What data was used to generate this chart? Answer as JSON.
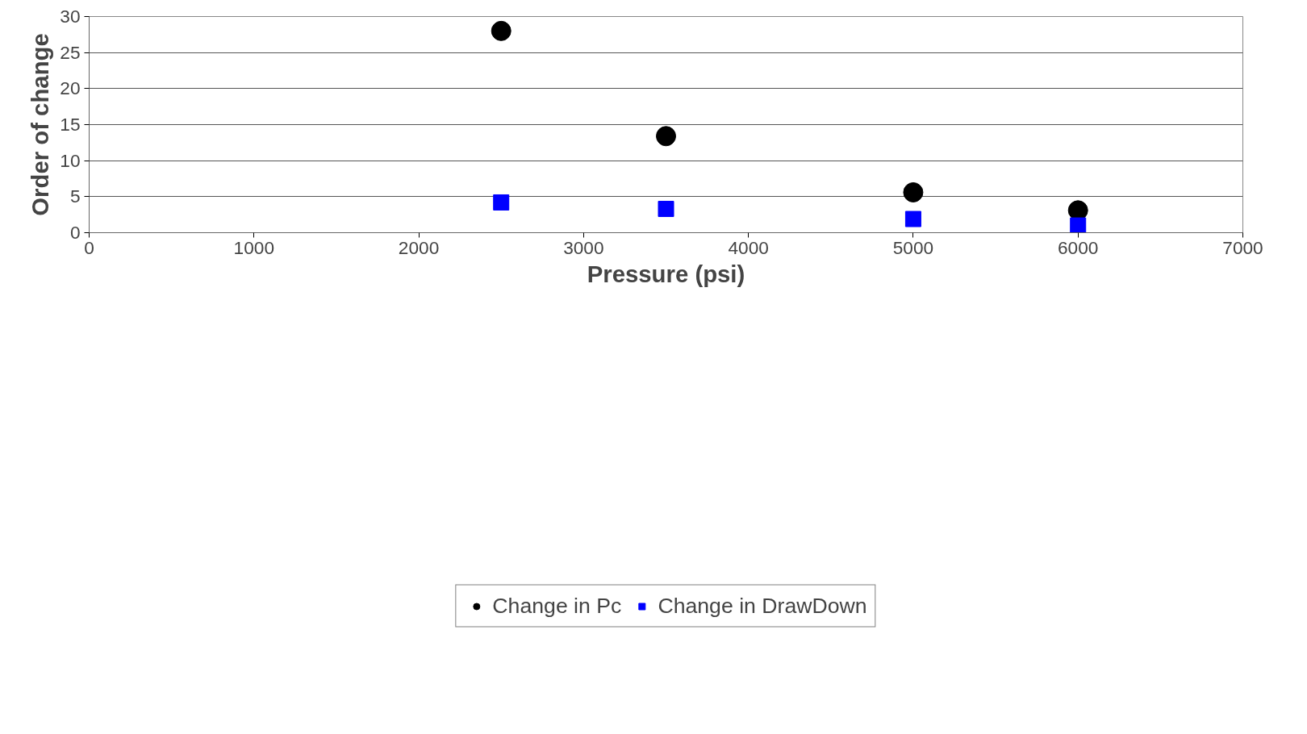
{
  "chart_data": {
    "type": "scatter",
    "xlabel": "Pressure (psi)",
    "ylabel": "Order of change",
    "x": [
      2500,
      3500,
      5000,
      6000
    ],
    "series": [
      {
        "name": "Change in Pc",
        "color": "#000000",
        "marker": "circle",
        "values": [
          28.0,
          13.4,
          5.6,
          3.1
        ]
      },
      {
        "name": "Change in DrawDown",
        "color": "#0000ff",
        "marker": "square",
        "values": [
          4.2,
          3.3,
          1.9,
          1.0
        ]
      }
    ],
    "xlim": [
      0,
      7000
    ],
    "xticks": [
      0,
      1000,
      2000,
      3000,
      4000,
      5000,
      6000,
      7000
    ],
    "ylim": [
      0,
      30
    ],
    "yticks": [
      0,
      5,
      10,
      15,
      20,
      25,
      30
    ],
    "grid": "y",
    "legend": "bottom"
  }
}
